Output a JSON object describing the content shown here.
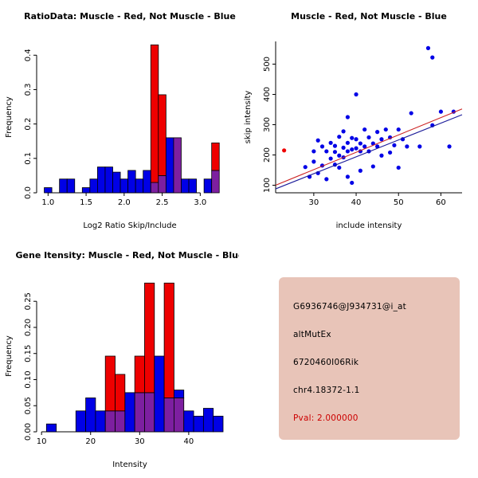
{
  "page": {
    "background": "#ffffff"
  },
  "colors": {
    "muscle_red": "#ee0000",
    "not_muscle_blue": "#0000e6",
    "overlap_purple": "#7d1fa0",
    "fit_line_red": "#cc2222",
    "fit_line_blue": "#1a1a99",
    "info_bg": "#e8c4b8",
    "pval_red": "#cc0000"
  },
  "chart_data": [
    {
      "type": "bar",
      "subtype": "overlaid-histogram",
      "title": "RatioData: Muscle - Red, Not Muscle - Blue",
      "xlabel": "Log2 Ratio Skip/Include",
      "ylabel": "Frequency",
      "xlim": [
        0.85,
        3.3
      ],
      "ylim": [
        0,
        0.44
      ],
      "xtick_values": [
        1.0,
        1.5,
        2.0,
        2.5,
        3.0
      ],
      "xtick_labels": [
        "1.0",
        "1.5",
        "2.0",
        "2.5",
        "3.0"
      ],
      "ytick_values": [
        0,
        0.1,
        0.2,
        0.3,
        0.4
      ],
      "ytick_labels": [
        "0.0",
        "0.1",
        "0.2",
        "0.3",
        "0.4"
      ],
      "axis_extent": "ticks",
      "bin_width": 0.1,
      "series": {
        "muscle_color": "#ee0000",
        "not_muscle_color": "#0000e6",
        "overlap_color": "#7d1fa0"
      },
      "bins": [
        {
          "x": 0.95,
          "not_muscle": 0.015,
          "muscle": 0
        },
        {
          "x": 1.15,
          "not_muscle": 0.04,
          "muscle": 0
        },
        {
          "x": 1.25,
          "not_muscle": 0.04,
          "muscle": 0
        },
        {
          "x": 1.45,
          "not_muscle": 0.015,
          "muscle": 0
        },
        {
          "x": 1.55,
          "not_muscle": 0.04,
          "muscle": 0
        },
        {
          "x": 1.65,
          "not_muscle": 0.075,
          "muscle": 0
        },
        {
          "x": 1.75,
          "not_muscle": 0.075,
          "muscle": 0
        },
        {
          "x": 1.85,
          "not_muscle": 0.06,
          "muscle": 0
        },
        {
          "x": 1.95,
          "not_muscle": 0.04,
          "muscle": 0
        },
        {
          "x": 2.05,
          "not_muscle": 0.065,
          "muscle": 0
        },
        {
          "x": 2.15,
          "not_muscle": 0.04,
          "muscle": 0
        },
        {
          "x": 2.25,
          "not_muscle": 0.065,
          "muscle": 0
        },
        {
          "x": 2.35,
          "not_muscle": 0.03,
          "muscle": 0.43
        },
        {
          "x": 2.45,
          "not_muscle": 0.05,
          "muscle": 0.285
        },
        {
          "x": 2.55,
          "not_muscle": 0.16,
          "muscle": 0
        },
        {
          "x": 2.65,
          "not_muscle": 0.16,
          "muscle": 0.16
        },
        {
          "x": 2.75,
          "not_muscle": 0.04,
          "muscle": 0
        },
        {
          "x": 2.85,
          "not_muscle": 0.04,
          "muscle": 0
        },
        {
          "x": 3.05,
          "not_muscle": 0.04,
          "muscle": 0
        },
        {
          "x": 3.15,
          "not_muscle": 0.065,
          "muscle": 0.145
        }
      ]
    },
    {
      "type": "scatter",
      "title": "Muscle - Red, Not Muscle - Blue",
      "xlabel": "include intensity",
      "ylabel": "skip intensity",
      "xlim": [
        21,
        65
      ],
      "ylim": [
        75,
        575
      ],
      "xtick_values": [
        30,
        40,
        50,
        60
      ],
      "xtick_labels": [
        "30",
        "40",
        "50",
        "60"
      ],
      "ytick_values": [
        100,
        200,
        300,
        400,
        500
      ],
      "ytick_labels": [
        "100",
        "200",
        "300",
        "400",
        "500"
      ],
      "axis_extent": "full",
      "muscle_color": "#ee0000",
      "not_muscle_color": "#0000e6",
      "points_muscle": [
        [
          23,
          215
        ]
      ],
      "points_not_muscle": [
        [
          28,
          160
        ],
        [
          29,
          128
        ],
        [
          30,
          212
        ],
        [
          30,
          178
        ],
        [
          31,
          140
        ],
        [
          31,
          248
        ],
        [
          32,
          165
        ],
        [
          32,
          228
        ],
        [
          33,
          212
        ],
        [
          33,
          120
        ],
        [
          34,
          188
        ],
        [
          34,
          240
        ],
        [
          35,
          210
        ],
        [
          35,
          168
        ],
        [
          35,
          230
        ],
        [
          36,
          198
        ],
        [
          36,
          158
        ],
        [
          36,
          260
        ],
        [
          37,
          224
        ],
        [
          37,
          192
        ],
        [
          37,
          278
        ],
        [
          38,
          240
        ],
        [
          38,
          212
        ],
        [
          38,
          128
        ],
        [
          38,
          325
        ],
        [
          39,
          256
        ],
        [
          39,
          218
        ],
        [
          39,
          108
        ],
        [
          40,
          400
        ],
        [
          40,
          252
        ],
        [
          40,
          222
        ],
        [
          41,
          238
        ],
        [
          41,
          212
        ],
        [
          41,
          148
        ],
        [
          42,
          284
        ],
        [
          42,
          228
        ],
        [
          43,
          258
        ],
        [
          43,
          212
        ],
        [
          44,
          238
        ],
        [
          44,
          162
        ],
        [
          45,
          276
        ],
        [
          45,
          228
        ],
        [
          46,
          252
        ],
        [
          46,
          198
        ],
        [
          47,
          284
        ],
        [
          48,
          258
        ],
        [
          48,
          208
        ],
        [
          49,
          232
        ],
        [
          50,
          284
        ],
        [
          50,
          158
        ],
        [
          51,
          252
        ],
        [
          52,
          228
        ],
        [
          53,
          338
        ],
        [
          55,
          228
        ],
        [
          57,
          553
        ],
        [
          58,
          522
        ],
        [
          58,
          298
        ],
        [
          60,
          343
        ],
        [
          62,
          228
        ],
        [
          63,
          343
        ]
      ],
      "fit_lines": [
        {
          "series": "muscle",
          "color": "#cc2222",
          "from": [
            21,
            100
          ],
          "to": [
            65,
            352
          ]
        },
        {
          "series": "not_muscle",
          "color": "#1a1a99",
          "from": [
            21,
            88
          ],
          "to": [
            65,
            333
          ]
        }
      ]
    },
    {
      "type": "bar",
      "subtype": "overlaid-histogram",
      "title": "Gene Itensity: Muscle - Red, Not Muscle - Blue",
      "xlabel": "Intensity",
      "ylabel": "Frequency",
      "xlim": [
        9,
        47
      ],
      "ylim": [
        0,
        0.29
      ],
      "xtick_values": [
        10,
        20,
        30,
        40
      ],
      "xtick_labels": [
        "10",
        "20",
        "30",
        "40"
      ],
      "ytick_values": [
        0,
        0.05,
        0.1,
        0.15,
        0.2,
        0.25
      ],
      "ytick_labels": [
        "0.00",
        "0.05",
        "0.10",
        "0.15",
        "0.20",
        "0.25"
      ],
      "axis_extent": "ticks",
      "bin_width": 2,
      "series": {
        "muscle_color": "#ee0000",
        "not_muscle_color": "#0000e6",
        "overlap_color": "#7d1fa0"
      },
      "bins": [
        {
          "x": 11,
          "not_muscle": 0.015,
          "muscle": 0
        },
        {
          "x": 17,
          "not_muscle": 0.04,
          "muscle": 0
        },
        {
          "x": 19,
          "not_muscle": 0.065,
          "muscle": 0
        },
        {
          "x": 21,
          "not_muscle": 0.04,
          "muscle": 0
        },
        {
          "x": 23,
          "not_muscle": 0.04,
          "muscle": 0.145
        },
        {
          "x": 25,
          "not_muscle": 0.04,
          "muscle": 0.11
        },
        {
          "x": 27,
          "not_muscle": 0.075,
          "muscle": 0
        },
        {
          "x": 29,
          "not_muscle": 0.075,
          "muscle": 0.145
        },
        {
          "x": 31,
          "not_muscle": 0.075,
          "muscle": 0.285
        },
        {
          "x": 33,
          "not_muscle": 0.145,
          "muscle": 0
        },
        {
          "x": 35,
          "not_muscle": 0.065,
          "muscle": 0.285
        },
        {
          "x": 37,
          "not_muscle": 0.08,
          "muscle": 0.065
        },
        {
          "x": 39,
          "not_muscle": 0.04,
          "muscle": 0
        },
        {
          "x": 41,
          "not_muscle": 0.03,
          "muscle": 0
        },
        {
          "x": 43,
          "not_muscle": 0.045,
          "muscle": 0
        },
        {
          "x": 45,
          "not_muscle": 0.03,
          "muscle": 0
        }
      ]
    }
  ],
  "info_panel": {
    "background": "#e8c4b8",
    "probe_id": "G6936746@J934731@i_at",
    "event_type": "altMutEx",
    "gene": "6720460I06Rik",
    "location": "chr4.18372-1.1",
    "pval": "Pval: 2.000000",
    "pval_color": "#cc0000"
  }
}
